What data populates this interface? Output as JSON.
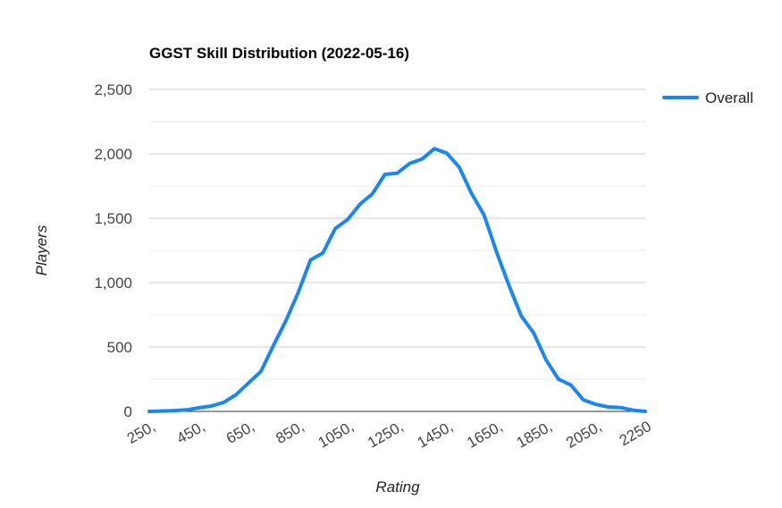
{
  "chart_data": {
    "type": "line",
    "title": "GGST Skill Distribution (2022-05-16)",
    "xlabel": "Rating",
    "ylabel": "Players",
    "ylim": [
      0,
      2500
    ],
    "y_ticks": [
      "0",
      "500",
      "1,000",
      "1,500",
      "2,000",
      "2,500"
    ],
    "x_ticks": [
      "250,",
      "450,",
      "650,",
      "850,",
      "1050,",
      "1250,",
      "1450,",
      "1650,",
      "1850,",
      "2050,",
      "2250"
    ],
    "grid": true,
    "legend_position": "right",
    "series": [
      {
        "name": "Overall",
        "color": "#1a87f0",
        "x": [
          250,
          300,
          350,
          400,
          450,
          500,
          550,
          600,
          650,
          700,
          750,
          800,
          850,
          900,
          950,
          1000,
          1050,
          1100,
          1150,
          1200,
          1250,
          1300,
          1350,
          1400,
          1450,
          1500,
          1550,
          1600,
          1650,
          1700,
          1750,
          1800,
          1850,
          1900,
          1950,
          2000,
          2050,
          2100,
          2150,
          2200,
          2250
        ],
        "values": [
          0,
          3,
          6,
          12,
          28,
          42,
          70,
          130,
          220,
          310,
          510,
          700,
          920,
          1175,
          1230,
          1420,
          1490,
          1610,
          1690,
          1840,
          1850,
          1925,
          1960,
          2040,
          2005,
          1895,
          1690,
          1525,
          1240,
          980,
          740,
          610,
          400,
          250,
          205,
          90,
          55,
          35,
          30,
          10,
          0
        ]
      }
    ]
  }
}
